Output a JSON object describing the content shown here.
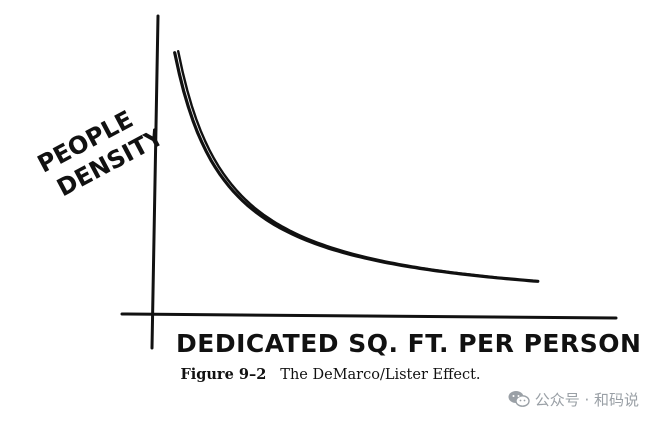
{
  "chart_data": {
    "type": "line",
    "title": "",
    "ylabel": "PEOPLE DENSITY",
    "ylabel_lines": [
      "PEOPLE",
      "DENSITY"
    ],
    "xlabel": "DEDICATED SQ. FT. PER PERSON",
    "series": [
      {
        "x": [
          1.0,
          1.2,
          1.5,
          2.0,
          2.5,
          3.0,
          4.0,
          5.0,
          6.0,
          7.0,
          8.0
        ],
        "values": [
          8.0,
          6.67,
          5.33,
          4.0,
          3.2,
          2.67,
          2.0,
          1.6,
          1.33,
          1.14,
          1.0
        ]
      }
    ],
    "xlim": [
      0.6,
      9.2
    ],
    "ylim": [
      0,
      9.0
    ],
    "grid": false,
    "ticks": false
  },
  "caption": {
    "figure_number": "Figure 9–2",
    "text": "The DeMarco/Lister Effect."
  },
  "watermark": {
    "text": "公众号 · 和码说",
    "icon": "wechat-icon"
  },
  "colors": {
    "ink": "#111111",
    "watermark": "#9aa0a6"
  }
}
